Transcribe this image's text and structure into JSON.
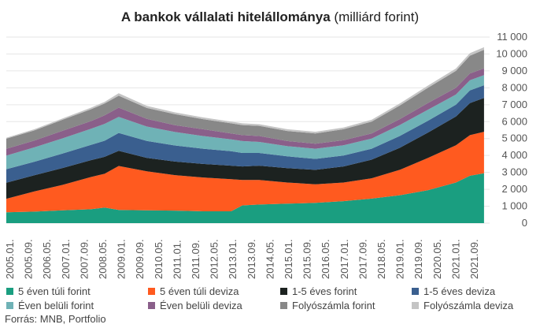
{
  "chart_data": {
    "type": "area",
    "stacked": true,
    "title": "A bankok vállalati hitelállománya",
    "subtitle": "(milliárd forint)",
    "source": "Forrás: MNB, Portfolio",
    "ylim": [
      0,
      11000
    ],
    "yticks": [
      "0",
      "1 000",
      "2 000",
      "3 000",
      "4 000",
      "5 000",
      "6 000",
      "7 000",
      "8 000",
      "9 000",
      "10 000",
      "11 000"
    ],
    "xticks": [
      "2005.01.",
      "2005.09.",
      "2006.05.",
      "2007.01.",
      "2007.09.",
      "2008.05.",
      "2009.01.",
      "2009.09.",
      "2010.05.",
      "2011.01.",
      "2011.09.",
      "2012.05.",
      "2013.01.",
      "2013.09.",
      "2014.05.",
      "2015.01.",
      "2015.09.",
      "2016.05.",
      "2017.01.",
      "2017.09.",
      "2018.05.",
      "2019.01.",
      "2019.09.",
      "2020.05.",
      "2021.01.",
      "2021.09."
    ],
    "x": [
      2005.0,
      2006.0,
      2007.0,
      2008.0,
      2008.5,
      2009.0,
      2010.0,
      2011.0,
      2012.0,
      2013.0,
      2013.4,
      2014.0,
      2015.0,
      2016.0,
      2017.0,
      2018.0,
      2019.0,
      2020.0,
      2021.0,
      2021.5,
      2022.0
    ],
    "series": [
      {
        "name": "5 éven túli forint",
        "color": "#1a9e80",
        "values": [
          640,
          680,
          760,
          820,
          920,
          780,
          760,
          740,
          700,
          700,
          1050,
          1100,
          1150,
          1200,
          1300,
          1450,
          1650,
          1950,
          2400,
          2800,
          2950
        ]
      },
      {
        "name": "5 éven túli deviza",
        "color": "#ff5a1f",
        "values": [
          800,
          1200,
          1500,
          1900,
          2000,
          2600,
          2300,
          2100,
          2000,
          1900,
          1500,
          1450,
          1250,
          1100,
          1100,
          1200,
          1500,
          1900,
          2200,
          2400,
          2450
        ]
      },
      {
        "name": "1-5 éves forint",
        "color": "#1c2220",
        "values": [
          950,
          950,
          1000,
          1000,
          1000,
          900,
          800,
          800,
          800,
          800,
          800,
          850,
          850,
          850,
          950,
          1100,
          1300,
          1500,
          1700,
          1900,
          2000
        ]
      },
      {
        "name": "1-5 éves deviza",
        "color": "#3a5f8f",
        "values": [
          800,
          800,
          850,
          900,
          950,
          1050,
          1000,
          950,
          900,
          850,
          800,
          750,
          700,
          650,
          650,
          650,
          700,
          700,
          700,
          750,
          750
        ]
      },
      {
        "name": "Éven belüli forint",
        "color": "#6fb2b6",
        "values": [
          800,
          850,
          900,
          950,
          1000,
          950,
          850,
          800,
          750,
          700,
          700,
          650,
          600,
          600,
          600,
          600,
          650,
          650,
          600,
          600,
          600
        ]
      },
      {
        "name": "Éven belüli deviza",
        "color": "#8a5f8a",
        "values": [
          400,
          400,
          450,
          450,
          500,
          550,
          450,
          400,
          400,
          350,
          350,
          350,
          300,
          300,
          300,
          300,
          350,
          400,
          400,
          400,
          400
        ]
      },
      {
        "name": "Folyószámla forint",
        "color": "#888888",
        "values": [
          600,
          600,
          650,
          700,
          700,
          700,
          650,
          650,
          600,
          600,
          600,
          600,
          600,
          600,
          650,
          700,
          800,
          900,
          1000,
          1050,
          1100
        ]
      },
      {
        "name": "Folyószámla deviza",
        "color": "#c4c4c4",
        "values": [
          60,
          70,
          80,
          100,
          100,
          150,
          120,
          110,
          100,
          100,
          100,
          100,
          100,
          100,
          100,
          110,
          120,
          130,
          140,
          150,
          150
        ]
      }
    ]
  }
}
